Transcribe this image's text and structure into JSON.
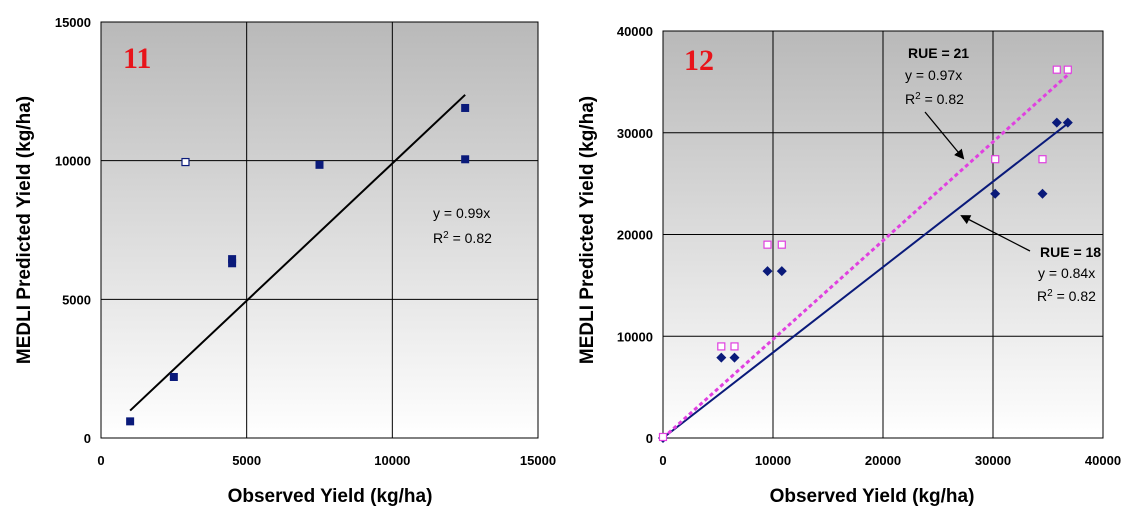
{
  "chart_data": [
    {
      "type": "scatter",
      "panel_label": "11",
      "xlabel": "Observed Yield (kg/ha)",
      "ylabel": "MEDLI Predicted Yield (kg/ha)",
      "xlim": [
        0,
        15000
      ],
      "ylim": [
        0,
        15000
      ],
      "xticks": [
        0,
        5000,
        10000,
        15000
      ],
      "yticks": [
        0,
        5000,
        10000,
        15000
      ],
      "grid": true,
      "background": "gradient-gray",
      "series": [
        {
          "marker": "filled-square",
          "color": "#0a1a7a",
          "points": [
            [
              1000,
              600
            ],
            [
              2500,
              2200
            ],
            [
              4500,
              6300
            ],
            [
              4500,
              6450
            ],
            [
              7500,
              9850
            ],
            [
              12500,
              11900
            ],
            [
              12500,
              10050
            ]
          ]
        },
        {
          "marker": "open-square",
          "color": "#0a1a7a",
          "points": [
            [
              2900,
              9950
            ]
          ]
        }
      ],
      "trendlines": [
        {
          "color": "#000000",
          "style": "solid",
          "x": [
            1000,
            12500
          ],
          "y": [
            990,
            12375
          ]
        }
      ],
      "annotations": [
        {
          "lines": [
            "y = 0.99x",
            "R2 = 0.82"
          ],
          "x": 11000,
          "y": 7900
        }
      ]
    },
    {
      "type": "scatter",
      "panel_label": "12",
      "xlabel": "Observed Yield (kg/ha)",
      "ylabel": "MEDLI Predicted Yield (kg/ha)",
      "xlim": [
        0,
        40000
      ],
      "ylim": [
        0,
        40000
      ],
      "xticks": [
        0,
        10000,
        20000,
        30000,
        40000
      ],
      "yticks": [
        0,
        10000,
        20000,
        30000,
        40000
      ],
      "grid": true,
      "background": "gradient-gray",
      "series": [
        {
          "name": "RUE = 18",
          "marker": "filled-diamond",
          "color": "#0a1a7a",
          "points": [
            [
              0,
              0
            ],
            [
              5300,
              7900
            ],
            [
              6500,
              7900
            ],
            [
              9500,
              16400
            ],
            [
              10800,
              16400
            ],
            [
              30200,
              24000
            ],
            [
              34500,
              24000
            ],
            [
              35800,
              31000
            ],
            [
              36800,
              31000
            ]
          ]
        },
        {
          "name": "RUE = 21",
          "marker": "open-square",
          "color": "#e040e0",
          "points": [
            [
              0,
              100
            ],
            [
              5300,
              9000
            ],
            [
              6500,
              9000
            ],
            [
              9500,
              19000
            ],
            [
              10800,
              19000
            ],
            [
              30200,
              27400
            ],
            [
              34500,
              27400
            ],
            [
              35800,
              36200
            ],
            [
              36800,
              36200
            ]
          ]
        }
      ],
      "trendlines": [
        {
          "series": "RUE = 18",
          "color": "#0a1a7a",
          "style": "solid",
          "x": [
            0,
            37000
          ],
          "y": [
            0,
            31080
          ]
        },
        {
          "series": "RUE = 21",
          "color": "#e040e0",
          "style": "dotted",
          "x": [
            0,
            37000
          ],
          "y": [
            0,
            35890
          ]
        }
      ],
      "annotations": [
        {
          "lines": [
            "RUE = 21",
            "y = 0.97x",
            "R2 = 0.82"
          ],
          "x": 24500,
          "y": 37800
        },
        {
          "lines": [
            "RUE = 18",
            "y = 0.84x",
            "R2 = 0.82"
          ],
          "x": 35000,
          "y": 17700
        }
      ]
    }
  ]
}
